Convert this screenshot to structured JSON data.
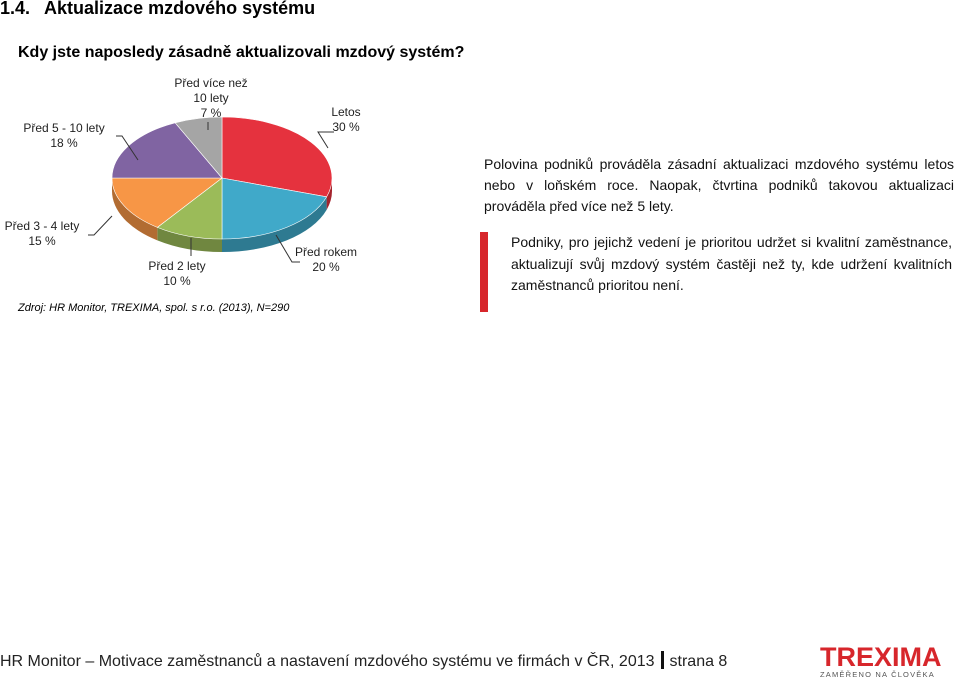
{
  "section": {
    "number": "1.4.",
    "title": "Aktualizace mzdového systému"
  },
  "question": "Kdy jste naposledy zásadně aktualizovali mzdový systém?",
  "chart_data": {
    "type": "pie",
    "slices": [
      {
        "label_lines": [
          "Letos",
          "30 %"
        ],
        "value": 30,
        "color": "#e5323e"
      },
      {
        "label_lines": [
          "Před rokem",
          "20 %"
        ],
        "value": 20,
        "color": "#40a9c9"
      },
      {
        "label_lines": [
          "Před 2 lety",
          "10 %"
        ],
        "value": 10,
        "color": "#9bbb59"
      },
      {
        "label_lines": [
          "Před 3 - 4 lety",
          "15 %"
        ],
        "value": 15,
        "color": "#f79646"
      },
      {
        "label_lines": [
          "Před 5 - 10 lety",
          "18 %"
        ],
        "value": 18,
        "color": "#8064a2"
      },
      {
        "label_lines": [
          "Před více než",
          "10 lety",
          "7 %"
        ],
        "value": 7,
        "color": "#a5a5a5"
      }
    ]
  },
  "source": "Zdroj: HR Monitor, TREXIMA, spol. s r.o. (2013), N=290",
  "summary": "Polovina podniků prováděla zásadní aktualizaci mzdového systému letos nebo v loňském roce. Naopak, čtvrtina podniků takovou aktualizaci prováděla před více než 5 lety.",
  "highlight": "Podniky, pro jejichž vedení je prioritou udržet si kvalitní zaměstnance, aktualizují svůj mzdový systém častěji než ty, kde udržení kvalitních zaměstnanců prioritou není.",
  "footer": {
    "left": "HR Monitor – Motivace zaměstnanců a nastavení mzdového systému ve firmách v ČR, 2013",
    "page": "strana 8"
  },
  "logo": {
    "brand": "TREXIMA",
    "tagline": "ZAMĚŘENO NA ČLOVĚKA"
  }
}
